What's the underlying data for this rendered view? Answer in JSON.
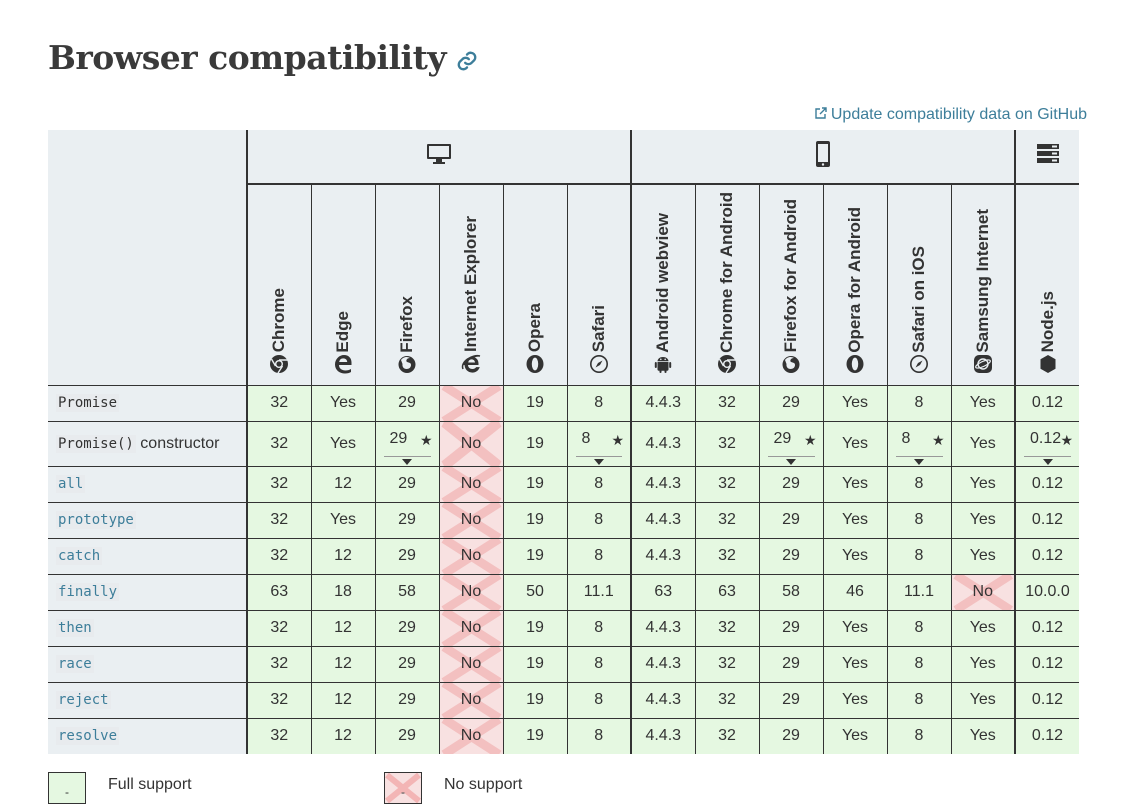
{
  "title": "Browser compatibility",
  "update_link": "Update compatibility data on GitHub",
  "platforms": [
    {
      "icon": "desktop-icon",
      "span": 6
    },
    {
      "icon": "mobile-icon",
      "span": 6
    },
    {
      "icon": "server-icon",
      "span": 1
    }
  ],
  "browsers": [
    {
      "name": "Chrome",
      "icon": "chrome-icon"
    },
    {
      "name": "Edge",
      "icon": "edge-icon"
    },
    {
      "name": "Firefox",
      "icon": "firefox-icon"
    },
    {
      "name": "Internet Explorer",
      "icon": "ie-icon"
    },
    {
      "name": "Opera",
      "icon": "opera-icon"
    },
    {
      "name": "Safari",
      "icon": "safari-icon"
    },
    {
      "name": "Android webview",
      "icon": "android-icon"
    },
    {
      "name": "Chrome for Android",
      "icon": "chrome-icon"
    },
    {
      "name": "Firefox for Android",
      "icon": "firefox-icon"
    },
    {
      "name": "Opera for Android",
      "icon": "opera-icon"
    },
    {
      "name": "Safari on iOS",
      "icon": "safari-icon"
    },
    {
      "name": "Samsung Internet",
      "icon": "samsung-icon"
    },
    {
      "name": "Node.js",
      "icon": "nodejs-icon"
    }
  ],
  "rows": [
    {
      "feature": "Promise",
      "suffix": "",
      "is_link": false,
      "values": [
        "32",
        "Yes",
        "29",
        "No",
        "19",
        "8",
        "4.4.3",
        "32",
        "29",
        "Yes",
        "8",
        "Yes",
        "0.12"
      ],
      "notes": []
    },
    {
      "feature": "Promise()",
      "suffix": " constructor",
      "is_link": false,
      "values": [
        "32",
        "Yes",
        "29",
        "No",
        "19",
        "8",
        "4.4.3",
        "32",
        "29",
        "Yes",
        "8",
        "Yes",
        "0.12"
      ],
      "notes": [
        2,
        5,
        8,
        10,
        12
      ]
    },
    {
      "feature": "all",
      "suffix": "",
      "is_link": true,
      "values": [
        "32",
        "12",
        "29",
        "No",
        "19",
        "8",
        "4.4.3",
        "32",
        "29",
        "Yes",
        "8",
        "Yes",
        "0.12"
      ],
      "notes": []
    },
    {
      "feature": "prototype",
      "suffix": "",
      "is_link": true,
      "values": [
        "32",
        "Yes",
        "29",
        "No",
        "19",
        "8",
        "4.4.3",
        "32",
        "29",
        "Yes",
        "8",
        "Yes",
        "0.12"
      ],
      "notes": []
    },
    {
      "feature": "catch",
      "suffix": "",
      "is_link": true,
      "values": [
        "32",
        "12",
        "29",
        "No",
        "19",
        "8",
        "4.4.3",
        "32",
        "29",
        "Yes",
        "8",
        "Yes",
        "0.12"
      ],
      "notes": []
    },
    {
      "feature": "finally",
      "suffix": "",
      "is_link": true,
      "values": [
        "63",
        "18",
        "58",
        "No",
        "50",
        "11.1",
        "63",
        "63",
        "58",
        "46",
        "11.1",
        "No",
        "10.0.0"
      ],
      "notes": []
    },
    {
      "feature": "then",
      "suffix": "",
      "is_link": true,
      "values": [
        "32",
        "12",
        "29",
        "No",
        "19",
        "8",
        "4.4.3",
        "32",
        "29",
        "Yes",
        "8",
        "Yes",
        "0.12"
      ],
      "notes": []
    },
    {
      "feature": "race",
      "suffix": "",
      "is_link": true,
      "values": [
        "32",
        "12",
        "29",
        "No",
        "19",
        "8",
        "4.4.3",
        "32",
        "29",
        "Yes",
        "8",
        "Yes",
        "0.12"
      ],
      "notes": []
    },
    {
      "feature": "reject",
      "suffix": "",
      "is_link": true,
      "values": [
        "32",
        "12",
        "29",
        "No",
        "19",
        "8",
        "4.4.3",
        "32",
        "29",
        "Yes",
        "8",
        "Yes",
        "0.12"
      ],
      "notes": []
    },
    {
      "feature": "resolve",
      "suffix": "",
      "is_link": true,
      "values": [
        "32",
        "12",
        "29",
        "No",
        "19",
        "8",
        "4.4.3",
        "32",
        "29",
        "Yes",
        "8",
        "Yes",
        "0.12"
      ],
      "notes": []
    }
  ],
  "note_symbol": "★",
  "legend": {
    "full_support": "Full support",
    "no_support": "No support",
    "mini_glyph": "-"
  },
  "colors": {
    "yes_bg": "#e5f8e1",
    "no_bg": "#f8e1e1",
    "header_bg": "#eaeff2",
    "link": "#3d7e9a"
  }
}
